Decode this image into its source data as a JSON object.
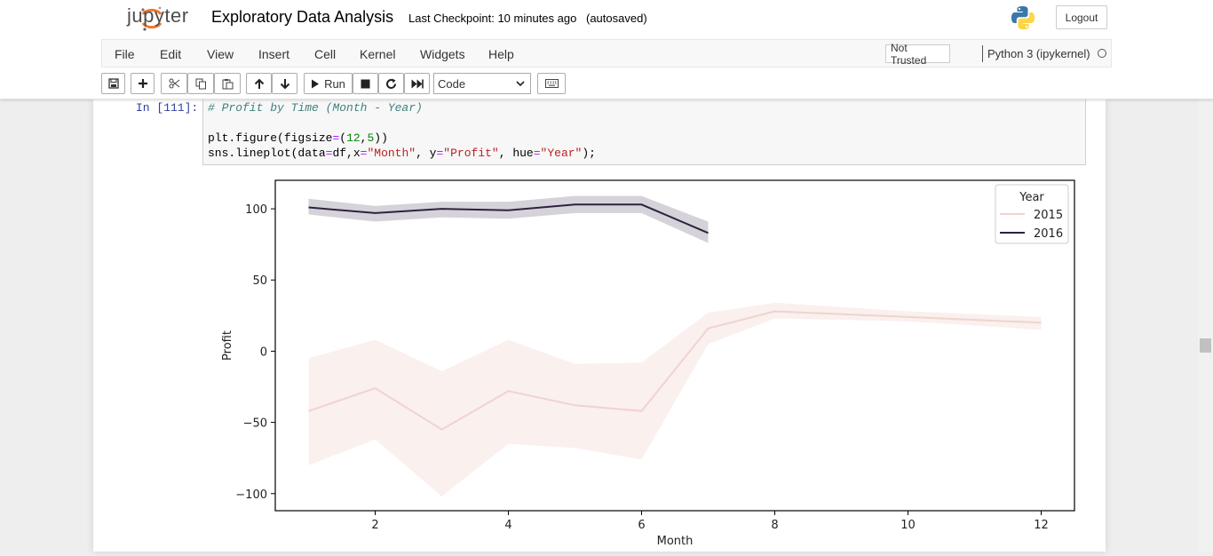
{
  "app": {
    "logo_text": "jupyter",
    "notebook_title": "Exploratory Data Analysis",
    "checkpoint": "Last Checkpoint: 10 minutes ago",
    "autosave": "(autosaved)",
    "logout_label": "Logout"
  },
  "menu": {
    "items": [
      "File",
      "Edit",
      "View",
      "Insert",
      "Cell",
      "Kernel",
      "Widgets",
      "Help"
    ],
    "trust_label": "Not Trusted",
    "kernel_name": "Python 3 (ipykernel)"
  },
  "toolbar": {
    "run_label": "Run",
    "cell_type": "Code",
    "icons": [
      "save-icon",
      "plus-icon",
      "cut-icon",
      "copy-icon",
      "paste-icon",
      "arrow-up-icon",
      "arrow-down-icon",
      "run-icon",
      "stop-icon",
      "restart-icon",
      "fast-forward-icon",
      "keyboard-icon"
    ]
  },
  "cell": {
    "prompt": "In [111]:",
    "code_lines": [
      "# Profit by Time (Month - Year)",
      "",
      "plt.figure(figsize=(12,5))",
      "sns.lineplot(data=df,x=\"Month\", y=\"Profit\", hue=\"Year\");"
    ]
  },
  "chart_data": {
    "type": "line",
    "xlabel": "Month",
    "ylabel": "Profit",
    "xlim": [
      0.5,
      12.5
    ],
    "ylim": [
      -112,
      120
    ],
    "x_ticks": [
      2,
      4,
      6,
      8,
      10,
      12
    ],
    "y_ticks": [
      -100,
      -50,
      0,
      50,
      100
    ],
    "grid": false,
    "legend": {
      "title": "Year",
      "placement": "top-right"
    },
    "series": [
      {
        "name": "2015",
        "color": "#f0d3cf",
        "x": [
          1,
          2,
          3,
          4,
          5,
          6,
          7,
          8,
          10,
          12
        ],
        "y": [
          -42,
          -26,
          -55,
          -28,
          -38,
          -42,
          16,
          28,
          24,
          20
        ],
        "ci_low": [
          -80,
          -62,
          -102,
          -65,
          -68,
          -76,
          5,
          23,
          21,
          15
        ],
        "ci_high": [
          -5,
          8,
          -14,
          8,
          -9,
          -8,
          27,
          34,
          28,
          24
        ]
      },
      {
        "name": "2016",
        "color": "#2d2240",
        "x": [
          1,
          2,
          3,
          4,
          5,
          6,
          7
        ],
        "y": [
          101,
          97,
          100,
          99,
          103,
          103,
          83
        ],
        "ci_low": [
          96,
          91,
          94,
          93,
          97,
          97,
          76
        ],
        "ci_high": [
          107,
          102,
          105,
          105,
          109,
          109,
          91
        ]
      }
    ]
  }
}
